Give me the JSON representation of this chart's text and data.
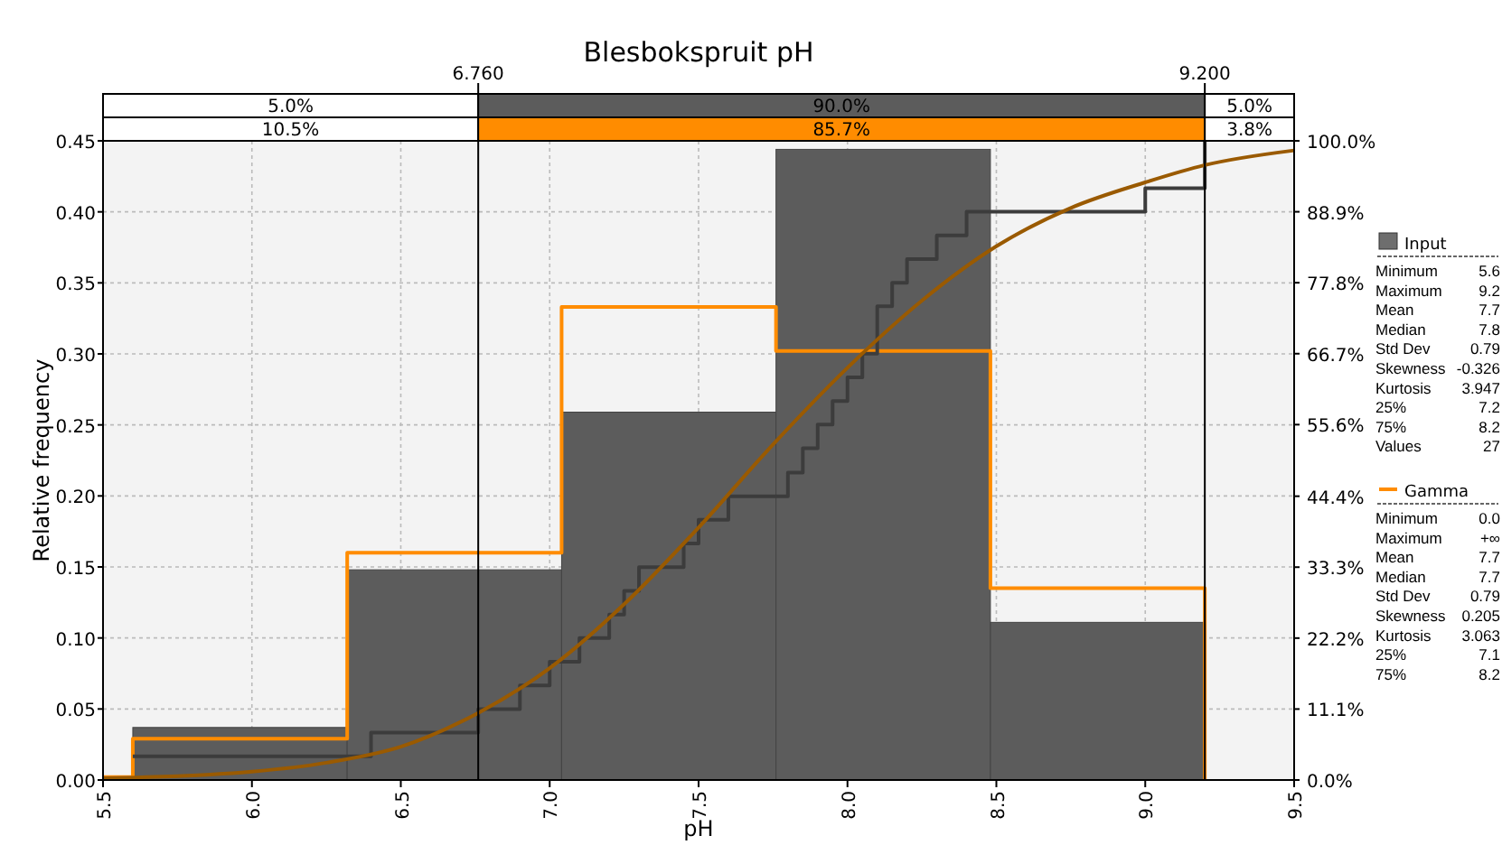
{
  "chart_data": [
    {
      "type": "histogram",
      "title": "Blesbokspruit pH",
      "xlabel": "pH",
      "ylabel": "Relative frequency",
      "bins": [
        5.6,
        6.32,
        7.04,
        7.76,
        8.48,
        9.2
      ],
      "values": [
        0.037,
        0.148,
        0.259,
        0.444,
        0.111
      ],
      "color": "#5c5c5c",
      "xlim": [
        5.5,
        9.5
      ],
      "xticks": [
        {
          "value": 5.5,
          "label": "5.5"
        },
        {
          "value": 6,
          "label": "6.0"
        },
        {
          "value": 6.5,
          "label": "6.5"
        },
        {
          "value": 7,
          "label": "7.0"
        },
        {
          "value": 7.5,
          "label": "7.5"
        },
        {
          "value": 8,
          "label": "8.0"
        },
        {
          "value": 8.5,
          "label": "8.5"
        },
        {
          "value": 9,
          "label": "9.0"
        },
        {
          "value": 9.5,
          "label": "9.5"
        }
      ],
      "ylim": [
        0,
        0.45
      ],
      "yticks": [
        {
          "value": 0,
          "label": "0.00"
        },
        {
          "value": 0.05,
          "label": "0.05"
        },
        {
          "value": 0.1,
          "label": "0.10"
        },
        {
          "value": 0.15,
          "label": "0.15"
        },
        {
          "value": 0.2,
          "label": "0.20"
        },
        {
          "value": 0.25,
          "label": "0.25"
        },
        {
          "value": 0.3,
          "label": "0.30"
        },
        {
          "value": 0.35,
          "label": "0.35"
        },
        {
          "value": 0.4,
          "label": "0.40"
        },
        {
          "value": 0.45,
          "label": "0.45"
        }
      ],
      "y2lim": [
        0,
        100
      ],
      "y2ticks": [
        {
          "value": 0,
          "label": "0.0%"
        },
        {
          "value": 11.1,
          "label": "11.1%"
        },
        {
          "value": 22.2,
          "label": "22.2%"
        },
        {
          "value": 33.3,
          "label": "33.3%"
        },
        {
          "value": 44.4,
          "label": "44.4%"
        },
        {
          "value": 55.6,
          "label": "55.6%"
        },
        {
          "value": 66.7,
          "label": "66.7%"
        },
        {
          "value": 77.8,
          "label": "77.8%"
        },
        {
          "value": 88.9,
          "label": "88.9%"
        },
        {
          "value": 100,
          "label": "100.0%"
        }
      ],
      "grid": true,
      "ref_lines": [
        {
          "axis": "x",
          "value": 6.76,
          "label": "6.760"
        },
        {
          "axis": "x",
          "value": 9.2,
          "label": "9.200"
        }
      ],
      "annotations": [
        "5.0%",
        "90.0%",
        "5.0%",
        "10.5%",
        "85.7%",
        "3.8%"
      ],
      "series": [
        {
          "type": "step",
          "color": "#ff8c00",
          "x": [
            5.5,
            5.6,
            6.32,
            7.04,
            7.76,
            8.48,
            9.2
          ],
          "values": [
            0.002,
            0.029,
            0.16,
            0.333,
            0.302,
            0.135,
            0
          ]
        },
        {
          "type": "step",
          "axis": "y2",
          "color": "#3c3c3c",
          "x": [
            5.6,
            6.4,
            6.76,
            6.9,
            7.0,
            7.1,
            7.2,
            7.25,
            7.3,
            7.45,
            7.5,
            7.6,
            7.8,
            7.85,
            7.9,
            7.95,
            8.0,
            8.05,
            8.1,
            8.1,
            8.15,
            8.2,
            8.3,
            8.4,
            9.0,
            9.2,
            9.2
          ],
          "values": [
            3.7,
            7.4,
            11.1,
            14.8,
            18.5,
            22.2,
            25.9,
            29.6,
            33.3,
            37.0,
            40.7,
            44.4,
            48.1,
            51.9,
            55.6,
            59.3,
            63.0,
            66.7,
            70.4,
            74.1,
            77.8,
            81.5,
            85.2,
            88.9,
            92.6,
            96.3,
            100
          ]
        },
        {
          "type": "line",
          "axis": "y2",
          "color": "#9a5a00",
          "x": [
            5.5,
            5.75,
            6.0,
            6.25,
            6.5,
            6.76,
            7.0,
            7.25,
            7.5,
            7.75,
            8.0,
            8.25,
            8.5,
            8.75,
            9.0,
            9.2,
            9.5
          ],
          "values": [
            0.3,
            0.6,
            1.3,
            2.7,
            5.2,
            10.5,
            17.5,
            27.5,
            39.5,
            52.5,
            64.5,
            75,
            83.5,
            89.5,
            93.5,
            96.2,
            98.5
          ]
        }
      ]
    },
    {
      "type": "other",
      "categories": [
        "Minimum",
        "Maximum",
        "Mean",
        "Median",
        "Std Dev",
        "Skewness",
        "Kurtosis",
        "25%",
        "75%",
        "Values"
      ],
      "series": [
        {
          "name": "Input",
          "type": "bar",
          "color": "#6e6e6e",
          "values": [
            5.6,
            9.2,
            7.7,
            7.8,
            0.79,
            -0.326,
            3.947,
            7.2,
            8.2,
            27
          ],
          "value_labels": [
            "5.6",
            "9.2",
            "7.7",
            "7.8",
            "0.79",
            "-0.326",
            "3.947",
            "7.2",
            "8.2",
            "27"
          ]
        },
        {
          "name": "Gamma",
          "type": "line",
          "color": "#ff8c00",
          "values": [
            0.0,
            null,
            7.7,
            7.7,
            0.79,
            0.205,
            3.063,
            7.1,
            8.2,
            null
          ],
          "value_labels": [
            "0.0",
            "+∞",
            "7.7",
            "7.7",
            "0.79",
            "0.205",
            "3.063",
            "7.1",
            "8.2",
            null
          ]
        }
      ]
    }
  ]
}
